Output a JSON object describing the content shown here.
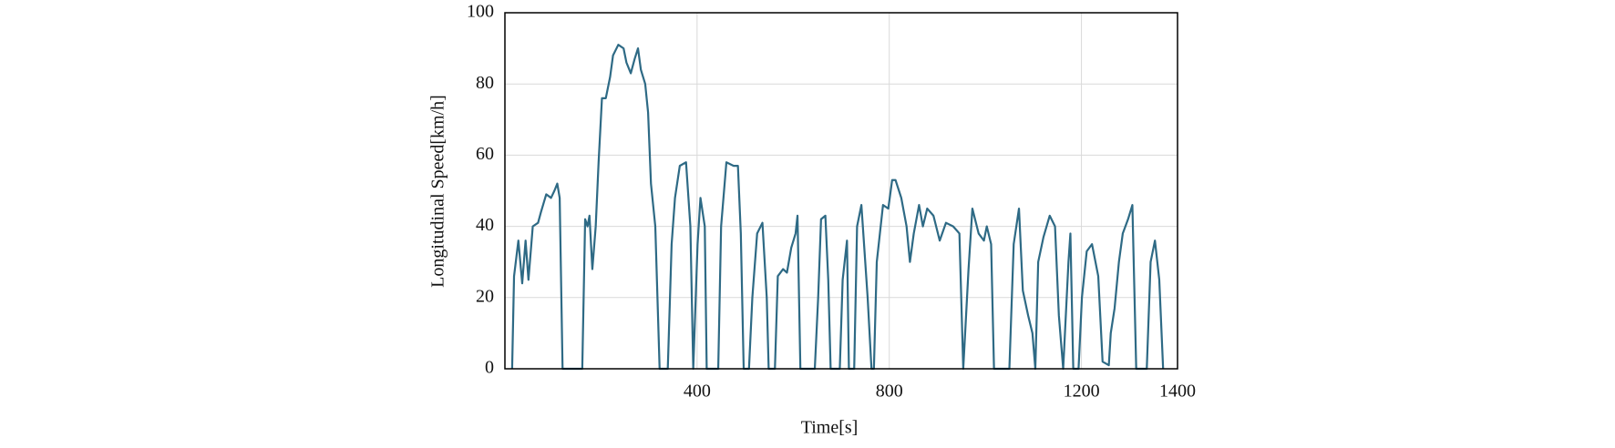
{
  "chart_data": {
    "type": "line",
    "x_label": "Time[s]",
    "y_label": "Longitudinal Speed[km/h]",
    "xlim": [
      0,
      1400
    ],
    "xticks": [
      400,
      800,
      1200,
      1400
    ],
    "ylim": [
      0,
      100
    ],
    "yticks": [
      0,
      20,
      40,
      60,
      80,
      100
    ],
    "grid": true,
    "series": [
      {
        "name": "speed",
        "color": "#2e6a85",
        "x": [
          15,
          19,
          28,
          36,
          43,
          49,
          58,
          69,
          75,
          86,
          96,
          103,
          109,
          114,
          120,
          161,
          167,
          172,
          176,
          182,
          189,
          195,
          202,
          210,
          219,
          225,
          236,
          247,
          253,
          262,
          270,
          277,
          283,
          292,
          298,
          304,
          313,
          322,
          339,
          347,
          354,
          364,
          377,
          386,
          392,
          401,
          407,
          416,
          420,
          444,
          450,
          461,
          476,
          485,
          491,
          497,
          508,
          515,
          525,
          536,
          545,
          549,
          562,
          568,
          579,
          587,
          596,
          605,
          609,
          615,
          645,
          652,
          658,
          667,
          673,
          678,
          697,
          703,
          712,
          716,
          727,
          733,
          742,
          755,
          763,
          768,
          774,
          787,
          798,
          806,
          813,
          825,
          836,
          843,
          851,
          862,
          870,
          879,
          892,
          905,
          918,
          933,
          946,
          954,
          965,
          973,
          986,
          997,
          1003,
          1012,
          1018,
          1050,
          1059,
          1070,
          1078,
          1089,
          1098,
          1104,
          1110,
          1121,
          1134,
          1145,
          1153,
          1162,
          1173,
          1177,
          1183,
          1194,
          1201,
          1211,
          1222,
          1235,
          1244,
          1257,
          1261,
          1269,
          1278,
          1286,
          1297,
          1306,
          1314,
          1336,
          1344,
          1353,
          1362,
          1370
        ],
        "values": [
          0,
          26,
          36,
          24,
          36,
          25,
          40,
          41,
          44,
          49,
          48,
          50,
          52,
          48,
          0,
          0,
          42,
          40,
          43,
          28,
          40,
          58,
          76,
          76,
          82,
          88,
          91,
          90,
          86,
          83,
          87,
          90,
          84,
          80,
          72,
          52,
          40,
          0,
          0,
          35,
          48,
          57,
          58,
          40,
          0,
          35,
          48,
          40,
          0,
          0,
          40,
          58,
          57,
          57,
          38,
          0,
          0,
          20,
          38,
          41,
          20,
          0,
          0,
          26,
          28,
          27,
          34,
          38,
          43,
          0,
          0,
          20,
          42,
          43,
          25,
          0,
          0,
          25,
          36,
          0,
          0,
          40,
          46,
          20,
          0,
          0,
          30,
          46,
          45,
          53,
          53,
          48,
          40,
          30,
          38,
          46,
          40,
          45,
          43,
          36,
          41,
          40,
          38,
          0,
          28,
          45,
          38,
          36,
          40,
          35,
          0,
          0,
          35,
          45,
          22,
          15,
          10,
          0,
          30,
          37,
          43,
          40,
          15,
          0,
          30,
          38,
          0,
          0,
          20,
          33,
          35,
          26,
          2,
          1,
          10,
          17,
          30,
          38,
          42,
          46,
          0,
          0,
          30,
          36,
          25,
          0
        ]
      }
    ]
  }
}
